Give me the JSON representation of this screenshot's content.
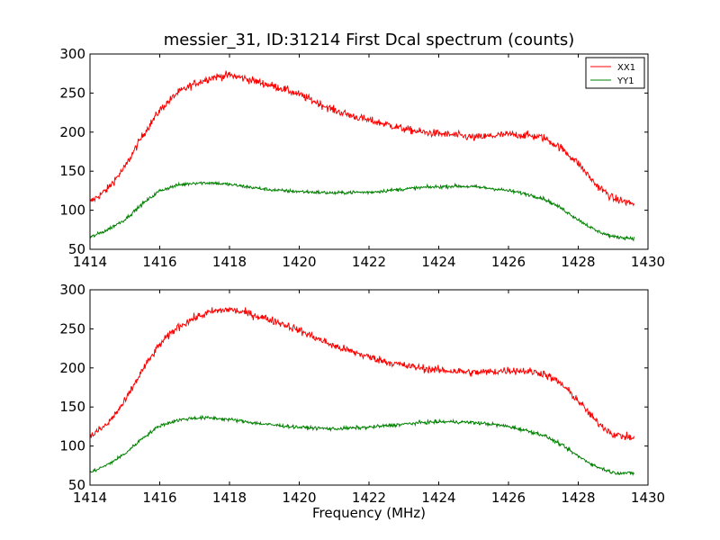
{
  "chart_data": {
    "type": "line",
    "title": "messier_31, ID:31214 First Dcal spectrum (counts)",
    "xlabel": "Frequency (MHz)",
    "colors": {
      "XX1": "#ff0000",
      "YY1": "#008000"
    },
    "panels": [
      {
        "xlim": [
          1414,
          1430
        ],
        "ylim": [
          50,
          300
        ],
        "xticks": [
          1414,
          1416,
          1418,
          1420,
          1422,
          1424,
          1426,
          1428,
          1430
        ],
        "yticks": [
          50,
          100,
          150,
          200,
          250,
          300
        ],
        "legend": {
          "placement": "top-right",
          "entries": [
            "XX1",
            "YY1"
          ]
        },
        "series": [
          {
            "name": "XX1",
            "color": "#ff0000",
            "x": [
              1414.0,
              1414.5,
              1415.0,
              1415.5,
              1416.0,
              1416.5,
              1417.0,
              1417.5,
              1418.0,
              1418.5,
              1419.0,
              1419.5,
              1420.0,
              1420.5,
              1421.0,
              1421.5,
              1422.0,
              1422.5,
              1423.0,
              1423.5,
              1424.0,
              1424.5,
              1425.0,
              1425.5,
              1426.0,
              1426.5,
              1427.0,
              1427.5,
              1428.0,
              1428.5,
              1429.0,
              1429.6
            ],
            "y": [
              110,
              127,
              155,
              195,
              228,
              250,
              262,
              270,
              273,
              268,
              262,
              256,
              248,
              238,
              228,
              221,
              215,
              210,
              204,
              200,
              198,
              196,
              193,
              195,
              197,
              196,
              193,
              180,
              160,
              133,
              115,
              108
            ]
          },
          {
            "name": "YY1",
            "color": "#008000",
            "x": [
              1414.0,
              1414.5,
              1415.0,
              1415.5,
              1416.0,
              1416.5,
              1417.0,
              1417.5,
              1418.0,
              1418.5,
              1419.0,
              1419.5,
              1420.0,
              1420.5,
              1421.0,
              1421.5,
              1422.0,
              1422.5,
              1423.0,
              1423.5,
              1424.0,
              1424.5,
              1425.0,
              1425.5,
              1426.0,
              1426.5,
              1427.0,
              1427.5,
              1428.0,
              1428.5,
              1429.0,
              1429.6
            ],
            "y": [
              65,
              75,
              88,
              108,
              125,
              132,
              135,
              135,
              133,
              130,
              127,
              125,
              124,
              123,
              122,
              123,
              123,
              125,
              127,
              129,
              130,
              131,
              130,
              128,
              125,
              121,
              115,
              103,
              88,
              74,
              66,
              64
            ]
          }
        ]
      },
      {
        "xlim": [
          1414,
          1430
        ],
        "ylim": [
          50,
          300
        ],
        "xticks": [
          1414,
          1416,
          1418,
          1420,
          1422,
          1424,
          1426,
          1428,
          1430
        ],
        "yticks": [
          50,
          100,
          150,
          200,
          250,
          300
        ],
        "series": [
          {
            "name": "XX1",
            "color": "#ff0000",
            "x": [
              1414.0,
              1414.5,
              1415.0,
              1415.5,
              1416.0,
              1416.5,
              1417.0,
              1417.5,
              1418.0,
              1418.5,
              1419.0,
              1419.5,
              1420.0,
              1420.5,
              1421.0,
              1421.5,
              1422.0,
              1422.5,
              1423.0,
              1423.5,
              1424.0,
              1424.5,
              1425.0,
              1425.5,
              1426.0,
              1426.5,
              1427.0,
              1427.5,
              1428.0,
              1428.5,
              1429.0,
              1429.6
            ],
            "y": [
              112,
              128,
              157,
              197,
              230,
              252,
              264,
              272,
              275,
              270,
              264,
              257,
              248,
              238,
              228,
              221,
              214,
              208,
              203,
              200,
              197,
              196,
              194,
              195,
              197,
              196,
              193,
              180,
              158,
              132,
              115,
              110
            ]
          },
          {
            "name": "YY1",
            "color": "#008000",
            "x": [
              1414.0,
              1414.5,
              1415.0,
              1415.5,
              1416.0,
              1416.5,
              1417.0,
              1417.5,
              1418.0,
              1418.5,
              1419.0,
              1419.5,
              1420.0,
              1420.5,
              1421.0,
              1421.5,
              1422.0,
              1422.5,
              1423.0,
              1423.5,
              1424.0,
              1424.5,
              1425.0,
              1425.5,
              1426.0,
              1426.5,
              1427.0,
              1427.5,
              1428.0,
              1428.5,
              1429.0,
              1429.6
            ],
            "y": [
              66,
              76,
              90,
              110,
              126,
              133,
              136,
              136,
              134,
              131,
              128,
              126,
              124,
              123,
              122,
              123,
              124,
              126,
              128,
              130,
              131,
              131,
              130,
              128,
              125,
              120,
              114,
              102,
              87,
              74,
              66,
              65
            ]
          }
        ]
      }
    ]
  }
}
